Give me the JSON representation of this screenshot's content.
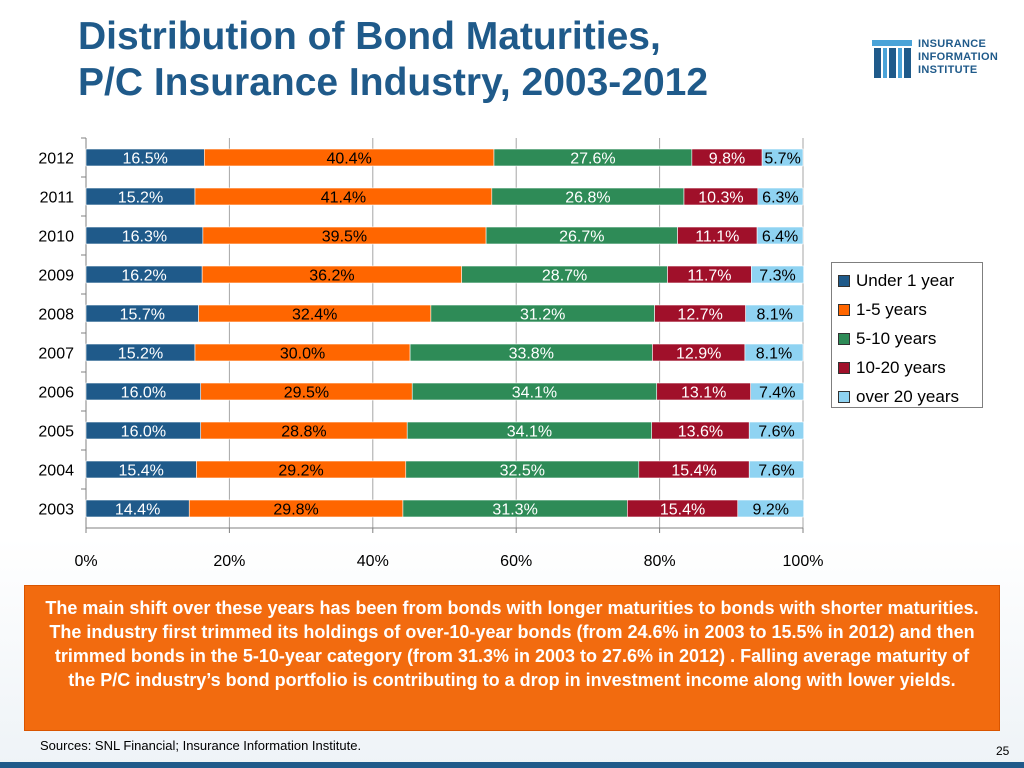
{
  "title": {
    "line1": "Distribution of Bond Maturities,",
    "line2": "P/C Insurance Industry, 2003-2012"
  },
  "logo": {
    "line1": "INSURANCE",
    "line2": "INFORMATION",
    "line3": "INSTITUTE"
  },
  "callout": {
    "text": "The main shift over these years has been from bonds with longer maturities to bonds with shorter maturities. The industry first trimmed its holdings of over-10-year bonds (from 24.6% in 2003 to 15.5% in 2012) and then trimmed bonds in the 5-10-year category (from 31.3% in 2003 to 27.6% in 2012) . Falling average maturity of the P/C industry’s bond portfolio is contributing to a drop in investment income along with lower yields."
  },
  "source": "Sources: SNL Financial; Insurance Information Institute.",
  "page_number": "25",
  "colors": {
    "title": "#1f5a8a",
    "callout_bg": "#f26b0f",
    "under_1_year": "#1f5a8a",
    "1_5_years": "#ff6600",
    "5_10_years": "#2e8b57",
    "10_20_years": "#a0102a",
    "over_20_years": "#8fd3f2"
  },
  "chart_data": {
    "type": "bar",
    "orientation": "horizontal",
    "stacked": "percent",
    "categories": [
      "2012",
      "2011",
      "2010",
      "2009",
      "2008",
      "2007",
      "2006",
      "2005",
      "2004",
      "2003"
    ],
    "series": [
      {
        "name": "Under 1 year",
        "color": "#1f5a8a",
        "label_color": "#ffffff",
        "values": [
          16.5,
          15.2,
          16.3,
          16.2,
          15.7,
          15.2,
          16.0,
          16.0,
          15.4,
          14.4
        ],
        "labels": [
          "16.5%",
          "15.2%",
          "16.3%",
          "16.2%",
          "15.7%",
          "15.2%",
          "16.0%",
          "16.0%",
          "15.4%",
          "14.4%"
        ]
      },
      {
        "name": "1-5 years",
        "color": "#ff6600",
        "label_color": "#000000",
        "values": [
          40.4,
          41.4,
          39.5,
          36.2,
          32.4,
          30.0,
          29.5,
          28.8,
          29.2,
          29.8
        ],
        "labels": [
          "40.4%",
          "41.4%",
          "39.5%",
          "36.2%",
          "32.4%",
          "30.0%",
          "29.5%",
          "28.8%",
          "29.2%",
          "29.8%"
        ]
      },
      {
        "name": "5-10 years",
        "color": "#2e8b57",
        "label_color": "#ffffff",
        "values": [
          27.6,
          26.8,
          26.7,
          28.7,
          31.2,
          33.8,
          34.1,
          34.1,
          32.5,
          31.3
        ],
        "labels": [
          "27.6%",
          "26.8%",
          "26.7%",
          "28.7%",
          "31.2%",
          "33.8%",
          "34.1%",
          "34.1%",
          "32.5%",
          "31.3%"
        ]
      },
      {
        "name": "10-20 years",
        "color": "#a0102a",
        "label_color": "#ffffff",
        "values": [
          9.8,
          10.3,
          11.1,
          11.7,
          12.7,
          12.9,
          13.1,
          13.6,
          15.4,
          15.4
        ],
        "labels": [
          "9.8%",
          "10.3%",
          "11.1%",
          "11.7%",
          "12.7%",
          "12.9%",
          "13.1%",
          "13.6%",
          "15.4%",
          "15.4%"
        ]
      },
      {
        "name": "over 20 years",
        "color": "#8fd3f2",
        "label_color": "#000000",
        "values": [
          5.7,
          6.3,
          6.4,
          7.3,
          8.1,
          8.1,
          7.4,
          7.6,
          7.6,
          9.2
        ],
        "labels": [
          "5.7%",
          "6.3%",
          "6.4%",
          "7.3%",
          "8.1%",
          "8.1%",
          "7.4%",
          "7.6%",
          "7.6%",
          "9.2%"
        ]
      }
    ],
    "xticks": [
      "0%",
      "20%",
      "40%",
      "60%",
      "80%",
      "100%"
    ],
    "xlim": [
      0,
      100
    ],
    "title": "",
    "xlabel": "",
    "ylabel": "",
    "grid": "vertical",
    "legend": "right"
  }
}
